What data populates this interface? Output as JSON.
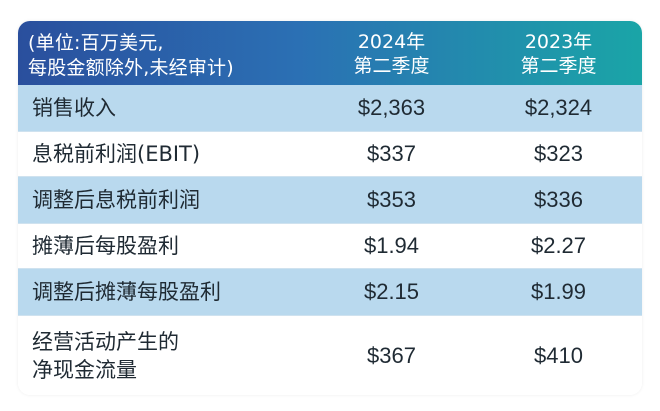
{
  "header": {
    "unit_line1": "(单位:百万美元,",
    "unit_line2": "每股金额除外,未经审计)",
    "col1_year": "2024年",
    "col1_quarter": "第二季度",
    "col2_year": "2023年",
    "col2_quarter": "第二季度"
  },
  "rows": [
    {
      "label": "销售收入",
      "v2024": "$2,363",
      "v2023": "$2,324"
    },
    {
      "label": "息税前利润(EBIT)",
      "v2024": "$337",
      "v2023": "$323"
    },
    {
      "label": "调整后息税前利润",
      "v2024": "$353",
      "v2023": "$336"
    },
    {
      "label": "摊薄后每股盈利",
      "v2024": "$1.94",
      "v2023": "$2.27"
    },
    {
      "label": "调整后摊薄每股盈利",
      "v2024": "$2.15",
      "v2023": "$1.99"
    },
    {
      "label_line1": "经营活动产生的",
      "label_line2": "净现金流量",
      "v2024": "$367",
      "v2023": "$410"
    }
  ],
  "colors": {
    "header_start": "#2a4f9d",
    "header_end": "#1aa5a7",
    "band": "#b9d9ee"
  }
}
